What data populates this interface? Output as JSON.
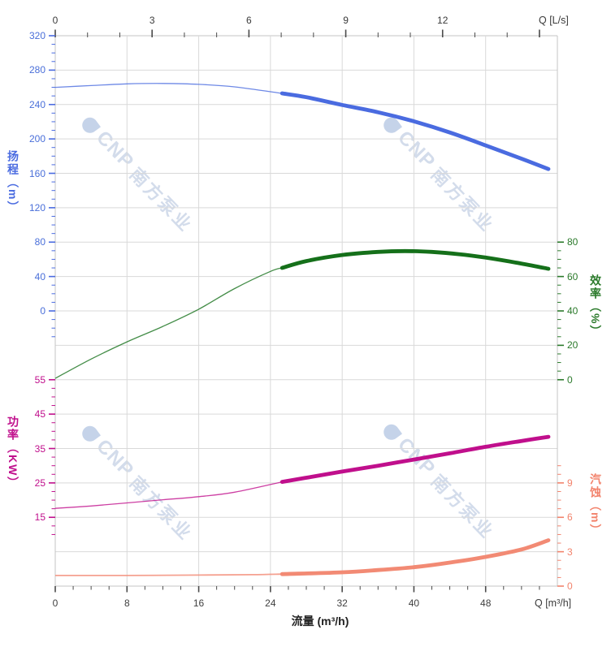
{
  "watermark": {
    "brand": "CNP",
    "name": "南方泵业"
  },
  "axes": {
    "top_flow": {
      "corner": "Q [L/s]",
      "ticks": [
        "0",
        "3",
        "6",
        "9",
        "12"
      ],
      "color": "#3a3a3a"
    },
    "bottom_flow": {
      "corner": "Q [m³/h]",
      "title": "流量 (m³/h)",
      "ticks": [
        "0",
        "8",
        "16",
        "24",
        "32",
        "40",
        "48"
      ],
      "color": "#3f3f3f"
    },
    "head": {
      "title": "扬程（m）",
      "ticks": [
        "320",
        "280",
        "240",
        "200",
        "160",
        "120",
        "80",
        "40",
        "0"
      ],
      "color": "#4a6be0"
    },
    "efficiency": {
      "title": "效率（%）",
      "ticks": [
        "80",
        "60",
        "40",
        "20",
        "0"
      ],
      "color": "#2b7a2b"
    },
    "power": {
      "title": "功率（KW）",
      "ticks": [
        "55",
        "45",
        "35",
        "25",
        "15"
      ],
      "color": "#c00f8c"
    },
    "npsh": {
      "title": "汽蚀（m）",
      "ticks": [
        "9",
        "6",
        "3",
        "0"
      ],
      "color": "#f2836c"
    }
  },
  "chart_data": {
    "type": "line",
    "x_axis": {
      "label_bottom": "流量 (m³/h)",
      "unit_bottom": "m³/h",
      "unit_top": "L/s",
      "range_m3h": [
        0,
        56
      ],
      "ticks_m3h": [
        0,
        8,
        16,
        24,
        32,
        40,
        48
      ],
      "ticks_ls": [
        0,
        3,
        6,
        9,
        12
      ]
    },
    "duty_range_m3h": [
      25.3,
      55
    ],
    "grid": "on",
    "series": [
      {
        "name": "head",
        "label": "扬程",
        "unit": "m",
        "color": "#4a6be0",
        "axis_side": "left-top",
        "axis_range": [
          0,
          320
        ],
        "points": [
          [
            0,
            260
          ],
          [
            4,
            262
          ],
          [
            8,
            264
          ],
          [
            12,
            264.5
          ],
          [
            16,
            263.5
          ],
          [
            20,
            260.5
          ],
          [
            25.3,
            253
          ],
          [
            28,
            248.5
          ],
          [
            32,
            239.5
          ],
          [
            36,
            231
          ],
          [
            40,
            220.5
          ],
          [
            44,
            207.5
          ],
          [
            48,
            192.5
          ],
          [
            52,
            177
          ],
          [
            55,
            165
          ]
        ]
      },
      {
        "name": "efficiency",
        "label": "效率",
        "unit": "%",
        "color": "#15701a",
        "axis_side": "right-top",
        "axis_range": [
          0,
          80
        ],
        "points": [
          [
            0,
            0.8
          ],
          [
            4,
            12
          ],
          [
            8,
            22
          ],
          [
            12,
            31
          ],
          [
            16,
            41
          ],
          [
            20,
            53
          ],
          [
            24,
            63
          ],
          [
            25.3,
            65
          ],
          [
            28,
            69
          ],
          [
            32,
            72.5
          ],
          [
            36,
            74.3
          ],
          [
            39,
            74.8
          ],
          [
            42,
            74.3
          ],
          [
            45,
            73
          ],
          [
            48,
            71
          ],
          [
            52,
            67.5
          ],
          [
            55,
            64.5
          ]
        ]
      },
      {
        "name": "power",
        "label": "功率",
        "unit": "KW",
        "color": "#c00f8c",
        "axis_side": "left-bottom",
        "axis_range": [
          15,
          55
        ],
        "points": [
          [
            0,
            17.6
          ],
          [
            4,
            18.3
          ],
          [
            8,
            19.2
          ],
          [
            12,
            20.1
          ],
          [
            16,
            21
          ],
          [
            20,
            22.3
          ],
          [
            25.3,
            25.3
          ],
          [
            28,
            26.5
          ],
          [
            32,
            28.3
          ],
          [
            36,
            30
          ],
          [
            40,
            31.8
          ],
          [
            44,
            33.6
          ],
          [
            48,
            35.5
          ],
          [
            52,
            37.2
          ],
          [
            55,
            38.4
          ]
        ]
      },
      {
        "name": "npsh",
        "label": "汽蚀",
        "unit": "m",
        "color": "#f28a74",
        "axis_side": "right-bottom",
        "axis_range": [
          0,
          9
        ],
        "points": [
          [
            0,
            0.93
          ],
          [
            8,
            0.93
          ],
          [
            16,
            0.96
          ],
          [
            22,
            1.0
          ],
          [
            25.3,
            1.05
          ],
          [
            32,
            1.2
          ],
          [
            36,
            1.4
          ],
          [
            40,
            1.65
          ],
          [
            44,
            2.05
          ],
          [
            48,
            2.55
          ],
          [
            52,
            3.2
          ],
          [
            55,
            4.0
          ]
        ]
      }
    ]
  }
}
